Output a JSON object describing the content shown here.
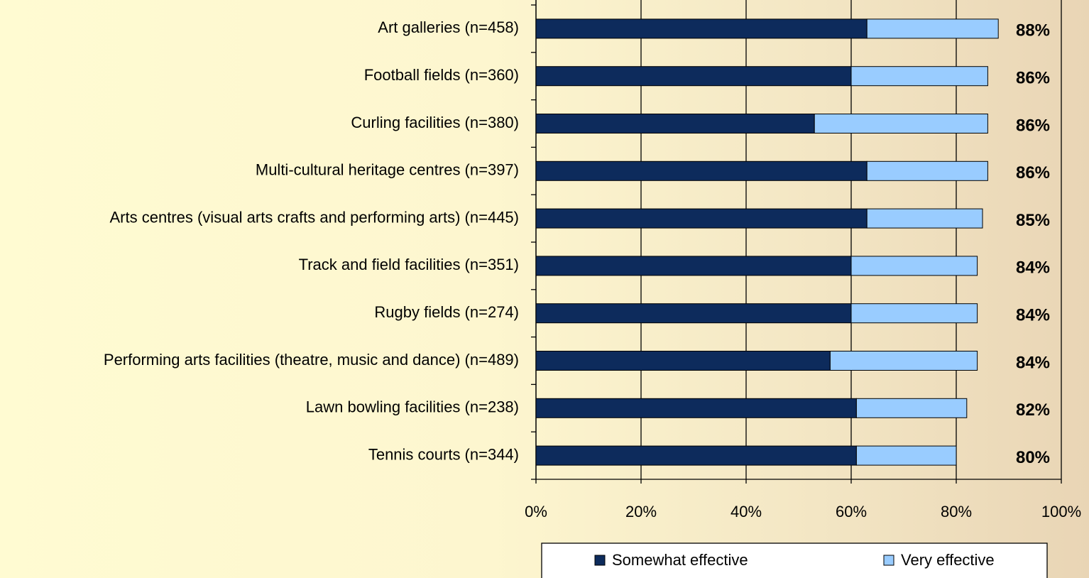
{
  "chart_data": {
    "type": "stacked-barh",
    "categories": [
      "Art galleries (n=458)",
      "Football fields (n=360)",
      "Curling facilities (n=380)",
      "Multi-cultural heritage centres (n=397)",
      "Arts centres (visual arts crafts and performing arts) (n=445)",
      "Track and field facilities (n=351)",
      "Rugby fields (n=274)",
      "Performing arts facilities (theatre, music and dance) (n=489)",
      "Lawn bowling facilities (n=238)",
      "Tennis courts (n=344)"
    ],
    "series": [
      {
        "name": "Somewhat effective",
        "color": "#0d2b5c",
        "values": [
          63,
          60,
          53,
          63,
          63,
          60,
          60,
          56,
          61,
          61
        ]
      },
      {
        "name": "Very effective",
        "color": "#99ccff",
        "values": [
          25,
          26,
          33,
          23,
          22,
          24,
          24,
          28,
          21,
          19
        ]
      }
    ],
    "totals": [
      88,
      86,
      86,
      86,
      85,
      84,
      84,
      84,
      82,
      80
    ],
    "totals_labels": [
      "88%",
      "86%",
      "86%",
      "86%",
      "85%",
      "84%",
      "84%",
      "84%",
      "82%",
      "80%"
    ],
    "xlim": [
      0,
      100
    ],
    "xticks": [
      {
        "value": 0,
        "label": "0%"
      },
      {
        "value": 20,
        "label": "20%"
      },
      {
        "value": 40,
        "label": "40%"
      },
      {
        "value": 60,
        "label": "60%"
      },
      {
        "value": 80,
        "label": "80%"
      },
      {
        "value": 100,
        "label": "100%"
      }
    ],
    "grid": true,
    "legend": "bottom"
  }
}
